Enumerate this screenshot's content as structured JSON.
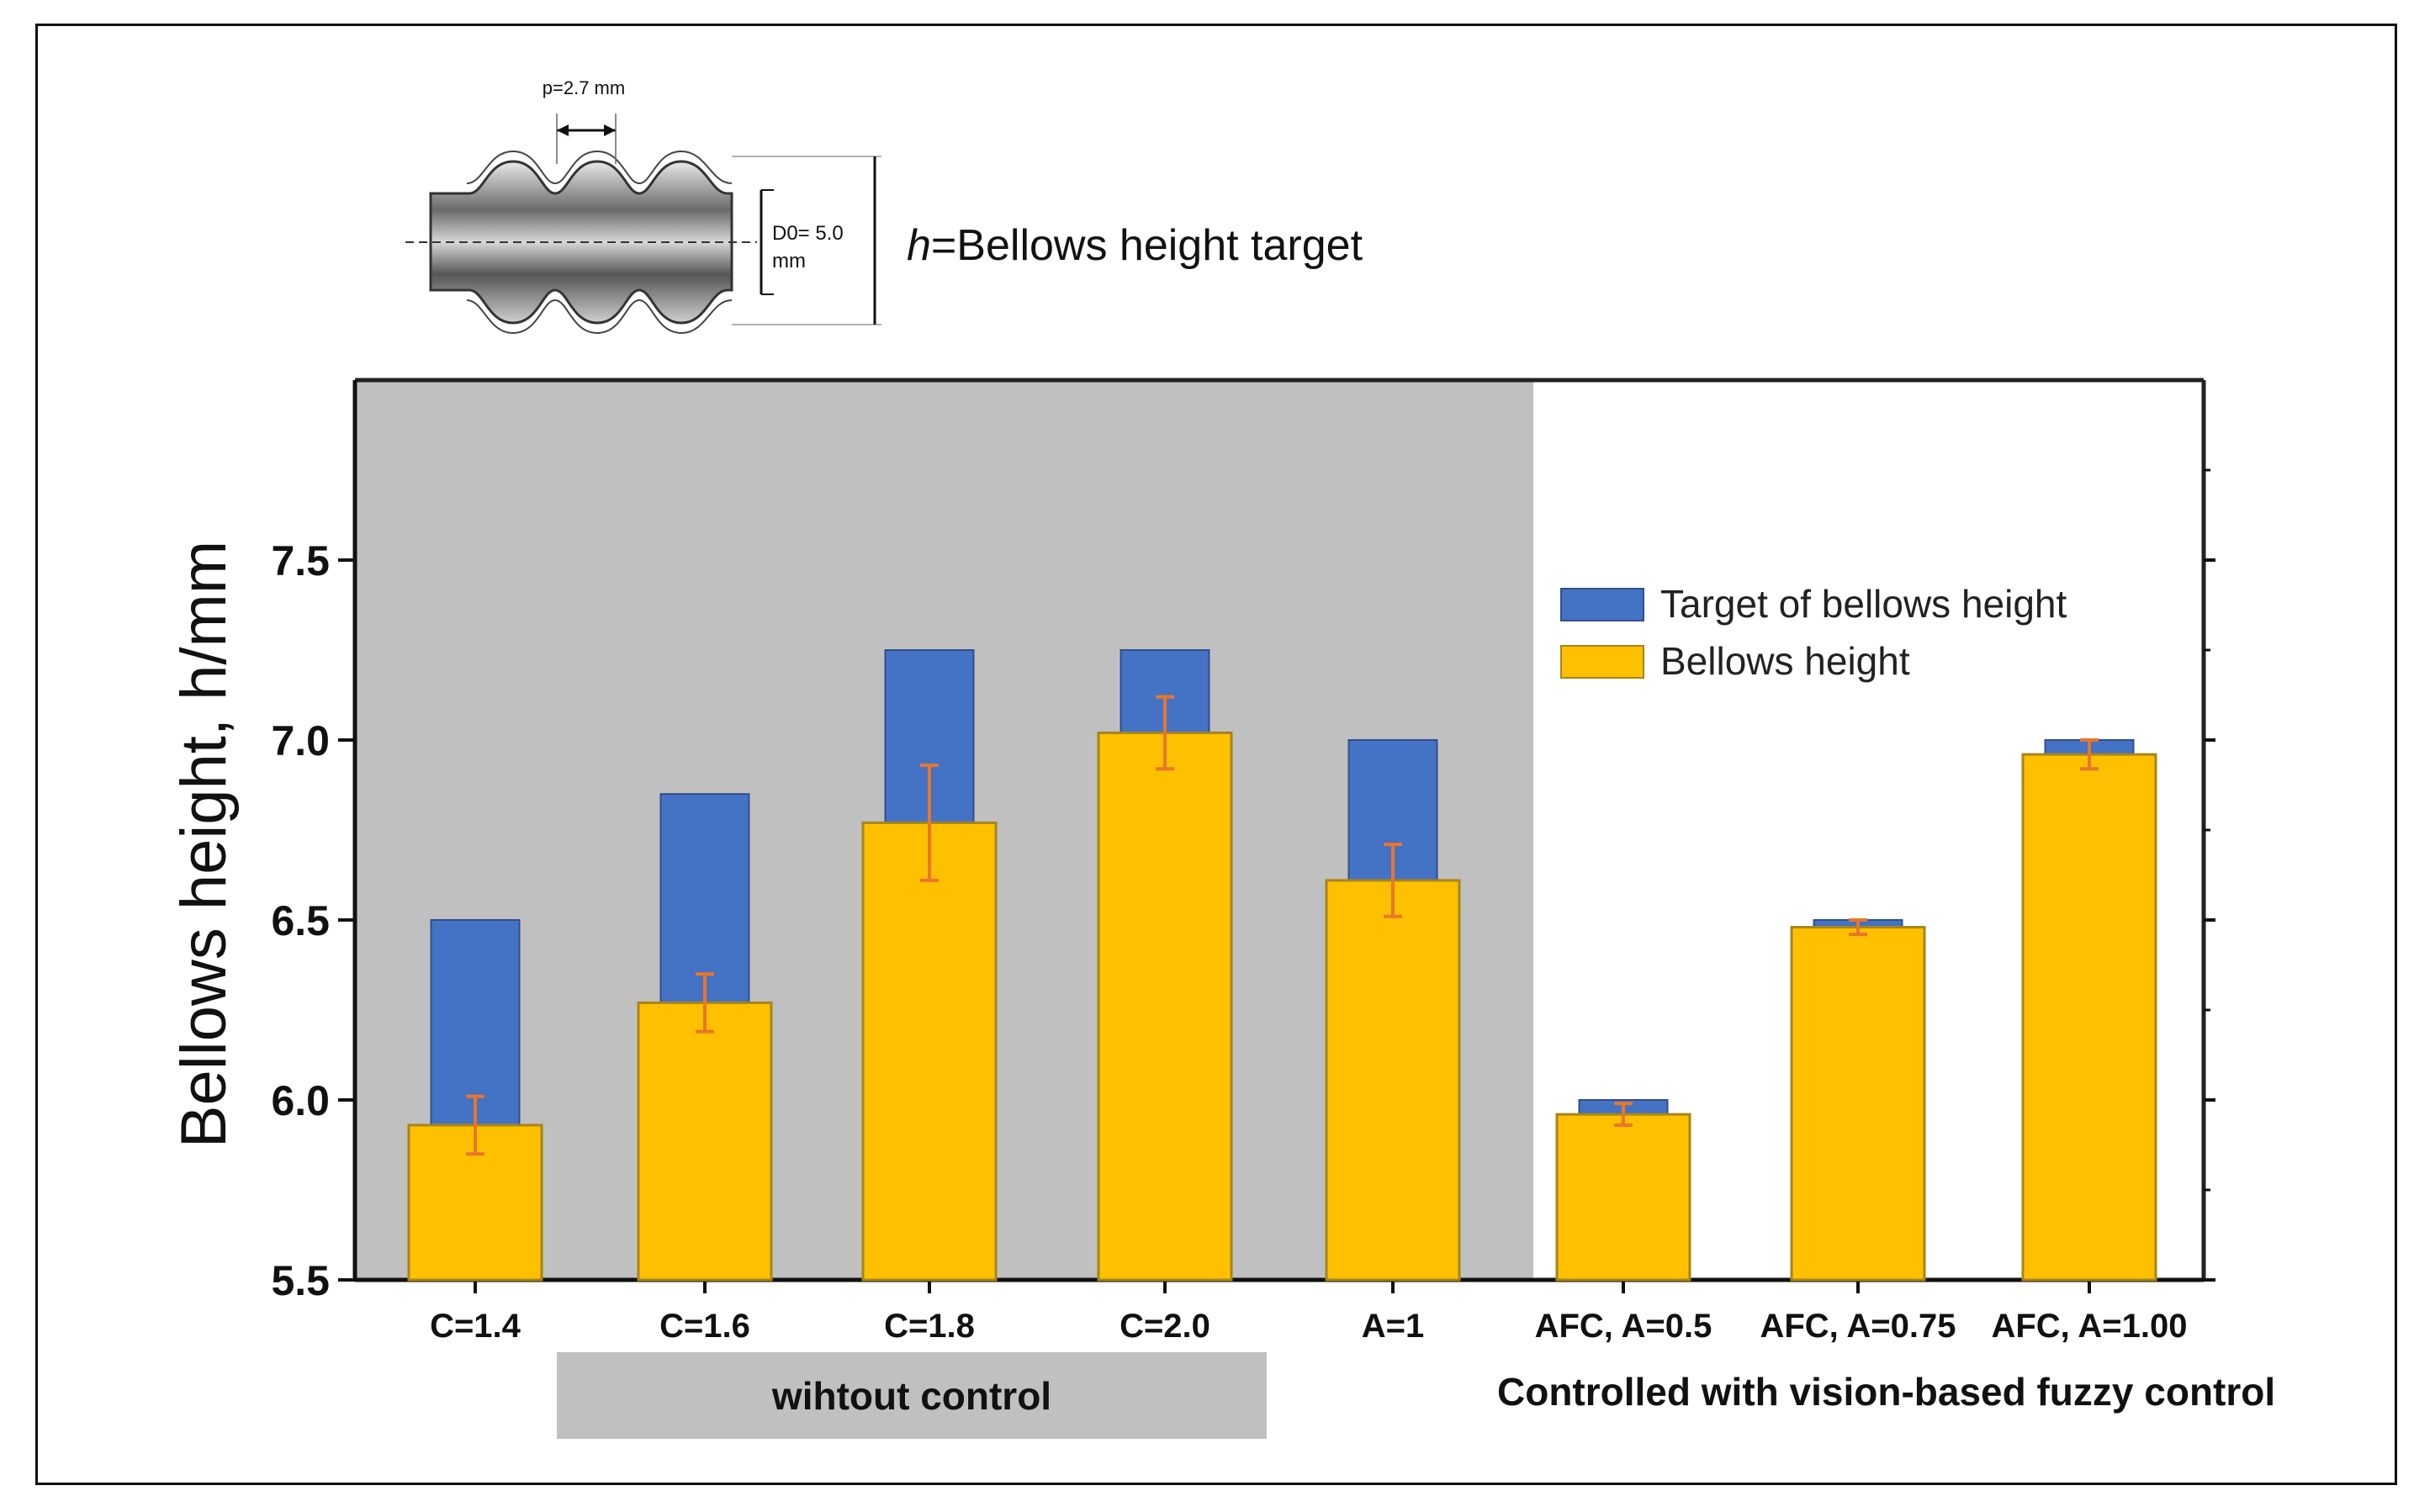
{
  "diagram": {
    "pitch_label": "p=2.7 mm",
    "diameter_label_1": "D0= 5.0",
    "diameter_label_2": "mm",
    "caption_symbol": "h",
    "caption_text": "=Bellows height target"
  },
  "groups": {
    "uncontrolled": "wihtout control",
    "controlled": "Controlled with vision-based fuzzy control"
  },
  "colors": {
    "target": "#4472c4",
    "actual": "#ffc000",
    "error_bar": "#e8762b",
    "shaded_region": "#c0c0c0"
  },
  "chart_data": {
    "type": "bar",
    "xlabel": "",
    "ylabel": "Bellows height, h/mm",
    "ylim": [
      5.5,
      8.0
    ],
    "yticks": [
      "5.5",
      "6.0",
      "6.5",
      "7.0",
      "7.5"
    ],
    "categories": [
      "C=1.4",
      "C=1.6",
      "C=1.8",
      "C=2.0",
      "A=1",
      "AFC, A=0.5",
      "AFC, A=0.75",
      "AFC, A=1.00"
    ],
    "series": [
      {
        "name": "Target of bellows height",
        "values": [
          6.5,
          6.85,
          7.25,
          7.25,
          7.0,
          6.0,
          6.5,
          7.0
        ]
      },
      {
        "name": "Bellows height",
        "values": [
          5.93,
          6.27,
          6.77,
          7.02,
          6.61,
          5.96,
          6.48,
          6.96
        ],
        "errors": [
          0.08,
          0.08,
          0.16,
          0.1,
          0.1,
          0.03,
          0.02,
          0.04
        ]
      }
    ],
    "shaded_categories": [
      "C=1.4",
      "C=1.6",
      "C=1.8",
      "C=2.0",
      "A=1"
    ],
    "legend_position": "right, upper"
  }
}
